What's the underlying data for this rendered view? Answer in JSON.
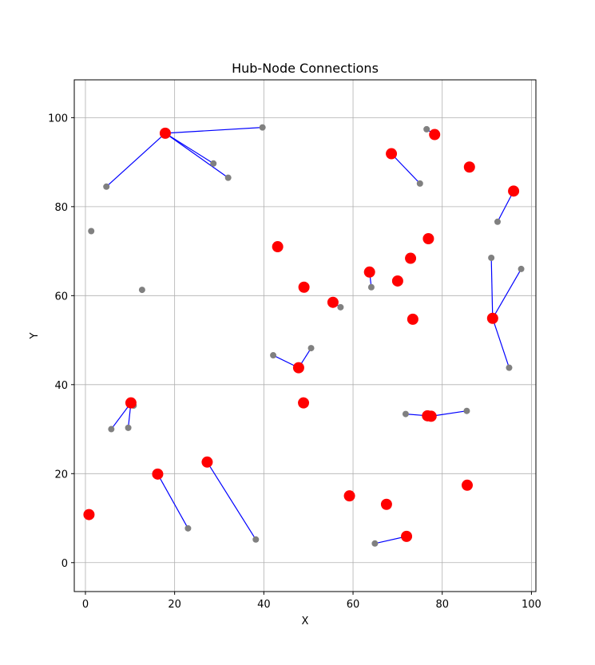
{
  "chart_data": {
    "type": "scatter",
    "title": "Hub-Node Connections",
    "xlabel": "X",
    "ylabel": "Y",
    "xlim": [
      -2.5,
      101
    ],
    "ylim": [
      -6.5,
      108.5
    ],
    "xticks": [
      0,
      20,
      40,
      60,
      80,
      100
    ],
    "yticks": [
      0,
      20,
      40,
      60,
      80,
      100
    ],
    "grid": true,
    "colors": {
      "hub": "#ff0000",
      "node": "#808080",
      "edge": "#0000ff",
      "grid": "#b0b0b0"
    },
    "hubs": [
      {
        "x": 17.9,
        "y": 96.5
      },
      {
        "x": 0.8,
        "y": 10.8
      },
      {
        "x": 10.2,
        "y": 35.9
      },
      {
        "x": 16.2,
        "y": 19.9
      },
      {
        "x": 27.3,
        "y": 22.6
      },
      {
        "x": 43.1,
        "y": 71.0
      },
      {
        "x": 49.0,
        "y": 61.9
      },
      {
        "x": 47.8,
        "y": 43.8
      },
      {
        "x": 48.9,
        "y": 35.9
      },
      {
        "x": 55.5,
        "y": 58.5
      },
      {
        "x": 59.2,
        "y": 15.0
      },
      {
        "x": 63.7,
        "y": 65.3
      },
      {
        "x": 67.5,
        "y": 13.1
      },
      {
        "x": 68.6,
        "y": 91.9
      },
      {
        "x": 70.0,
        "y": 63.3
      },
      {
        "x": 72.0,
        "y": 5.9
      },
      {
        "x": 72.9,
        "y": 68.4
      },
      {
        "x": 73.4,
        "y": 54.7
      },
      {
        "x": 76.9,
        "y": 72.8
      },
      {
        "x": 76.7,
        "y": 33.0
      },
      {
        "x": 77.5,
        "y": 32.9
      },
      {
        "x": 78.3,
        "y": 96.2
      },
      {
        "x": 86.1,
        "y": 88.9
      },
      {
        "x": 85.6,
        "y": 17.4
      },
      {
        "x": 91.3,
        "y": 54.9
      },
      {
        "x": 96.0,
        "y": 83.5
      }
    ],
    "nodes": [
      {
        "x": 4.7,
        "y": 84.5
      },
      {
        "x": 28.7,
        "y": 89.7
      },
      {
        "x": 32.0,
        "y": 86.5
      },
      {
        "x": 39.7,
        "y": 97.8
      },
      {
        "x": 1.3,
        "y": 74.5
      },
      {
        "x": 12.7,
        "y": 61.3
      },
      {
        "x": 5.8,
        "y": 30.0
      },
      {
        "x": 9.6,
        "y": 30.3
      },
      {
        "x": 10.8,
        "y": 35.3
      },
      {
        "x": 23.0,
        "y": 7.7
      },
      {
        "x": 38.2,
        "y": 5.2
      },
      {
        "x": 42.1,
        "y": 46.6
      },
      {
        "x": 50.6,
        "y": 48.2
      },
      {
        "x": 57.2,
        "y": 57.4
      },
      {
        "x": 64.1,
        "y": 61.9
      },
      {
        "x": 64.9,
        "y": 4.3
      },
      {
        "x": 75.0,
        "y": 85.2
      },
      {
        "x": 76.5,
        "y": 97.4
      },
      {
        "x": 71.8,
        "y": 33.4
      },
      {
        "x": 85.5,
        "y": 34.1
      },
      {
        "x": 92.4,
        "y": 76.6
      },
      {
        "x": 91.0,
        "y": 68.5
      },
      {
        "x": 97.7,
        "y": 66.0
      },
      {
        "x": 95.0,
        "y": 43.8
      }
    ],
    "edges": [
      [
        [
          17.9,
          96.5
        ],
        [
          4.7,
          84.5
        ]
      ],
      [
        [
          17.9,
          96.5
        ],
        [
          39.7,
          97.8
        ]
      ],
      [
        [
          17.9,
          96.5
        ],
        [
          28.7,
          89.7
        ]
      ],
      [
        [
          17.9,
          96.5
        ],
        [
          32.0,
          86.5
        ]
      ],
      [
        [
          10.2,
          35.9
        ],
        [
          5.8,
          30.0
        ]
      ],
      [
        [
          10.2,
          35.9
        ],
        [
          9.6,
          30.3
        ]
      ],
      [
        [
          10.2,
          35.9
        ],
        [
          10.8,
          35.3
        ]
      ],
      [
        [
          16.2,
          19.9
        ],
        [
          23.0,
          7.7
        ]
      ],
      [
        [
          27.3,
          22.6
        ],
        [
          38.2,
          5.2
        ]
      ],
      [
        [
          47.8,
          43.8
        ],
        [
          42.1,
          46.6
        ]
      ],
      [
        [
          47.8,
          43.8
        ],
        [
          50.6,
          48.2
        ]
      ],
      [
        [
          55.5,
          58.5
        ],
        [
          57.2,
          57.4
        ]
      ],
      [
        [
          63.7,
          65.3
        ],
        [
          64.1,
          61.9
        ]
      ],
      [
        [
          68.6,
          91.9
        ],
        [
          75.0,
          85.2
        ]
      ],
      [
        [
          72.0,
          5.9
        ],
        [
          64.9,
          4.3
        ]
      ],
      [
        [
          76.7,
          33.0
        ],
        [
          71.8,
          33.4
        ]
      ],
      [
        [
          77.5,
          32.9
        ],
        [
          85.5,
          34.1
        ]
      ],
      [
        [
          78.3,
          96.2
        ],
        [
          76.5,
          97.4
        ]
      ],
      [
        [
          96.0,
          83.5
        ],
        [
          92.4,
          76.6
        ]
      ],
      [
        [
          91.3,
          54.9
        ],
        [
          91.0,
          68.5
        ]
      ],
      [
        [
          91.3,
          54.9
        ],
        [
          97.7,
          66.0
        ]
      ],
      [
        [
          91.3,
          54.9
        ],
        [
          95.0,
          43.8
        ]
      ]
    ]
  }
}
